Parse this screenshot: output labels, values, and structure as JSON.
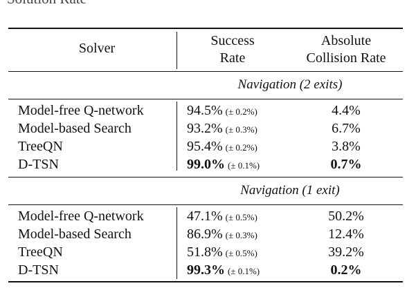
{
  "caption_fragment": "Solution Rate",
  "header": {
    "solver": "Solver",
    "success_rate": [
      "Success",
      "Rate"
    ],
    "collision_rate": [
      "Absolute",
      "Collision Rate"
    ]
  },
  "sections": [
    {
      "title": "Navigation (2 exits)",
      "rows": [
        {
          "solver": "Model-free Q-network",
          "rate": "94.5%",
          "std": "(± 0.2%)",
          "collision": "4.4%",
          "bold": false
        },
        {
          "solver": "Model-based Search",
          "rate": "93.2%",
          "std": "(± 0.3%)",
          "collision": "6.7%",
          "bold": false
        },
        {
          "solver": "TreeQN",
          "rate": "95.4%",
          "std": "(± 0.2%)",
          "collision": "3.8%",
          "bold": false
        },
        {
          "solver": "D-TSN",
          "rate": "99.0%",
          "std": "(± 0.1%)",
          "collision": "0.7%",
          "bold": true
        }
      ]
    },
    {
      "title": "Navigation (1 exit)",
      "rows": [
        {
          "solver": "Model-free Q-network",
          "rate": "47.1%",
          "std": "(± 0.5%)",
          "collision": "50.2%",
          "bold": false
        },
        {
          "solver": "Model-based Search",
          "rate": "86.9%",
          "std": "(± 0.3%)",
          "collision": "12.4%",
          "bold": false
        },
        {
          "solver": "TreeQN",
          "rate": "51.8%",
          "std": "(± 0.5%)",
          "collision": "39.2%",
          "bold": false
        },
        {
          "solver": "D-TSN",
          "rate": "99.3%",
          "std": "(± 0.1%)",
          "collision": "0.2%",
          "bold": true
        }
      ]
    }
  ]
}
